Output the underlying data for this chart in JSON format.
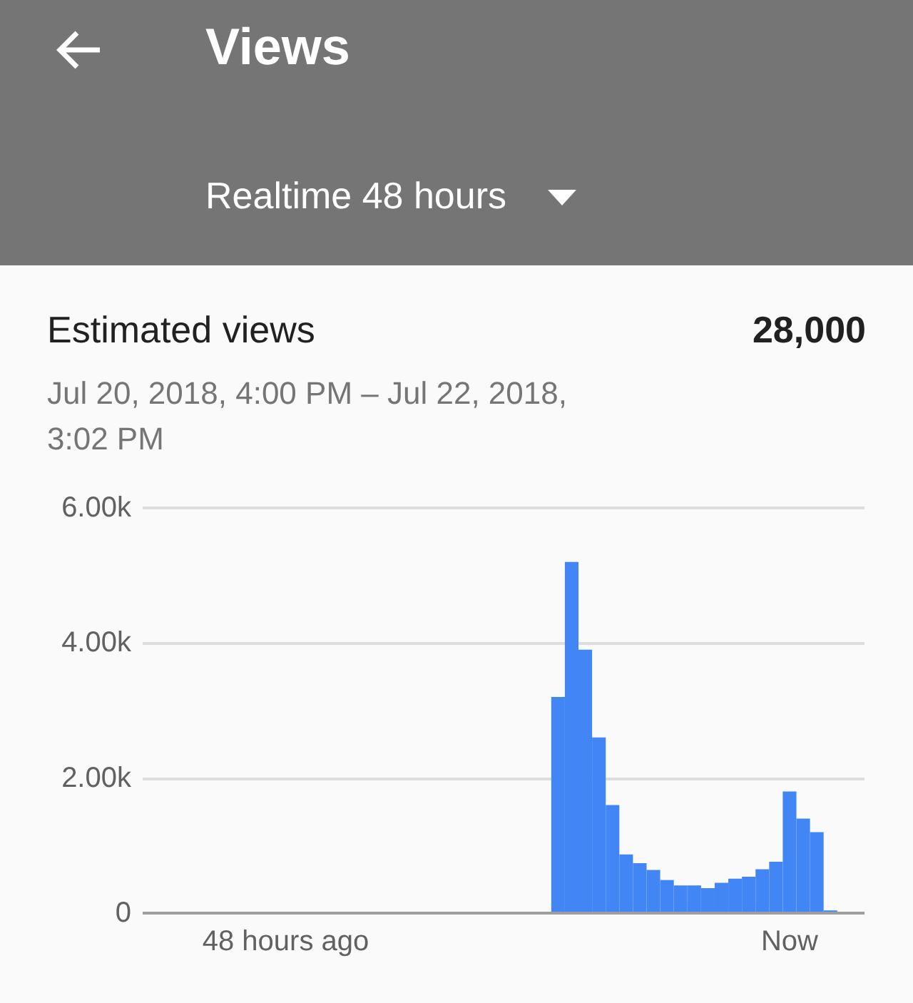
{
  "chart_data": {
    "type": "bar",
    "title": "Estimated views",
    "subtitle": "Jul 20, 2018, 4:00 PM – Jul 22, 2018, 3:02 PM",
    "annotations": [
      "Views",
      "Realtime 48 hours",
      "28,000"
    ],
    "categories": [
      null,
      null,
      null,
      null,
      null,
      null,
      null,
      null,
      null,
      null,
      "48 hours ago",
      null,
      null,
      null,
      null,
      null,
      null,
      null,
      null,
      null,
      null,
      null,
      null,
      null,
      null,
      null,
      null,
      null,
      null,
      null,
      null,
      null,
      null,
      null,
      null,
      null,
      null,
      null,
      null,
      null,
      null,
      null,
      null,
      null,
      null,
      null,
      null,
      "Now",
      null,
      null,
      null,
      null,
      null
    ],
    "values": [
      0,
      0,
      0,
      0,
      0,
      0,
      0,
      0,
      0,
      0,
      0,
      0,
      0,
      0,
      0,
      0,
      0,
      0,
      0,
      0,
      0,
      0,
      0,
      0,
      0,
      0,
      0,
      0,
      0,
      0,
      3200,
      5200,
      3900,
      2600,
      1600,
      870,
      740,
      640,
      490,
      410,
      410,
      370,
      450,
      510,
      540,
      650,
      760,
      1800,
      1400,
      1200,
      40,
      0,
      0
    ],
    "color": "#4285f4",
    "ylim": [
      0,
      6000
    ],
    "yticks": [
      {
        "value": 0,
        "label": "0"
      },
      {
        "value": 2000,
        "label": "2.00k"
      },
      {
        "value": 4000,
        "label": "4.00k"
      },
      {
        "value": 6000,
        "label": "6.00k"
      }
    ],
    "grid": "y"
  }
}
